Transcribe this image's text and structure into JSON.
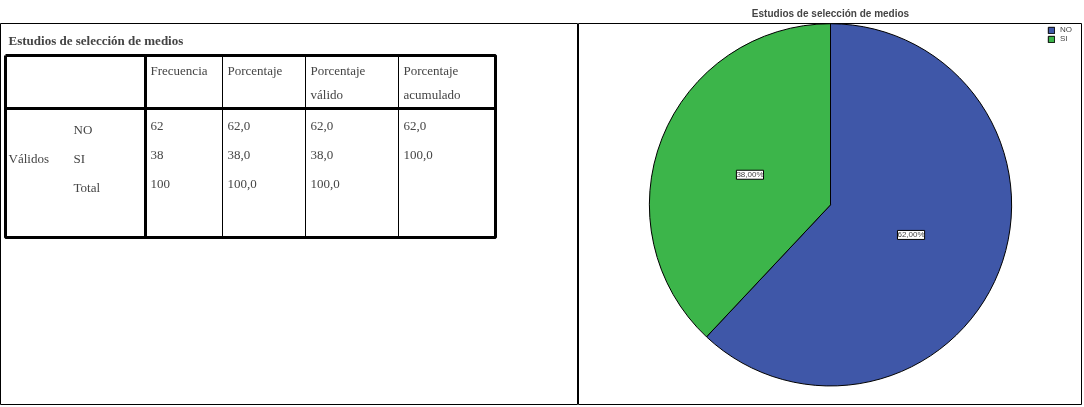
{
  "chart_data": [
    {
      "type": "other",
      "title": "Estudios de selección de medios",
      "annotations": [
        "Frecuencia",
        "Porcentaje",
        "Porcentaje válido",
        "Porcentaje acumulado",
        "Válidos",
        "NO",
        "62",
        "62,0",
        "62,0",
        "62,0",
        "SI",
        "38",
        "38,0",
        "38,0",
        "100,0",
        "Total",
        "100",
        "100,0",
        "100,0"
      ]
    },
    {
      "type": "pie",
      "title": "Estudios de selección de medios",
      "categories": [
        "NO",
        "SI"
      ],
      "values": [
        62,
        38
      ],
      "colors": [
        "#3f57a8",
        "#3cb54a"
      ],
      "value_labels": [
        "62,00%",
        "38,00%"
      ],
      "legend": "top right"
    }
  ]
}
